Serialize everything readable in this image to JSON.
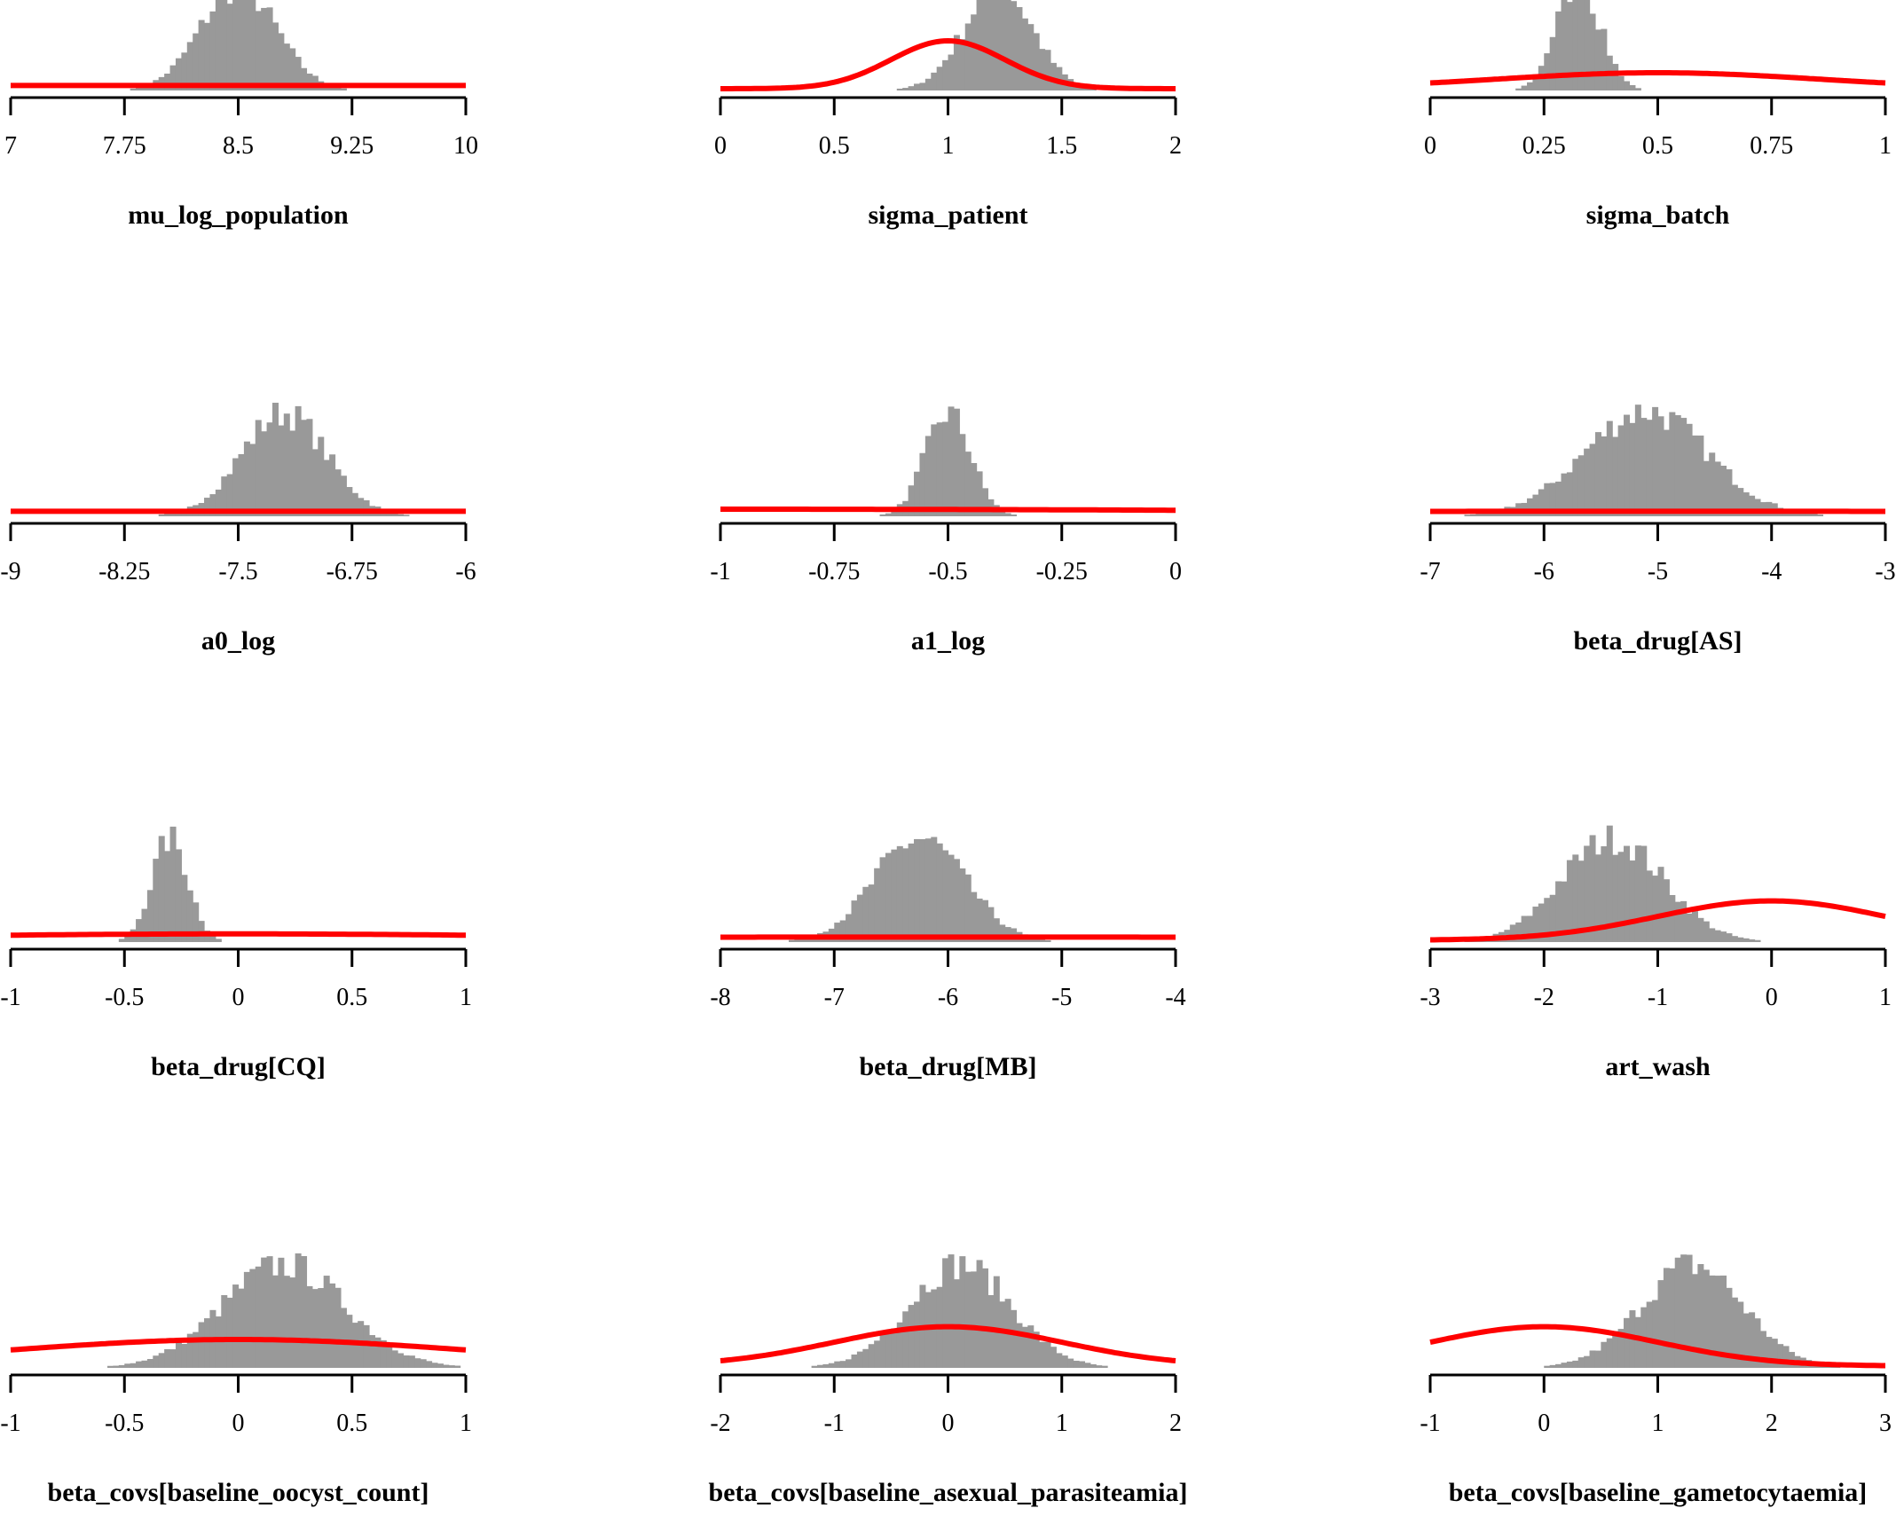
{
  "colors": {
    "histogram": "#999999",
    "prior_curve": "#ff0000",
    "axis": "#000000"
  },
  "chart_data": [
    {
      "type": "bar",
      "title": "mu_log_population",
      "xlim": [
        7,
        10
      ],
      "xticks": [
        7,
        7.75,
        8.5,
        9.25,
        10
      ],
      "tick_labels": [
        "7",
        "7.75",
        "8.5",
        "9.25",
        "10"
      ],
      "hist_center": 8.5,
      "hist_sd": 0.25,
      "hist_skew": 0,
      "prior": {
        "dist": "normal",
        "mean": 8.5,
        "sd": 10,
        "scale": 0.03
      }
    },
    {
      "type": "bar",
      "title": "sigma_patient",
      "xlim": [
        0,
        2
      ],
      "xticks": [
        0,
        0.5,
        1,
        1.5,
        2
      ],
      "tick_labels": [
        "0",
        "0.5",
        "1",
        "1.5",
        "2"
      ],
      "hist_center": 1.22,
      "hist_sd": 0.15,
      "hist_skew": 0,
      "prior": {
        "dist": "normal",
        "mean": 1,
        "sd": 0.25,
        "scale": 0.45
      }
    },
    {
      "type": "bar",
      "title": "sigma_batch",
      "xlim": [
        0,
        1
      ],
      "xticks": [
        0,
        0.25,
        0.5,
        0.75,
        1
      ],
      "tick_labels": [
        "0",
        "0.25",
        "0.5",
        "0.75",
        "1"
      ],
      "hist_center": 0.31,
      "hist_sd": 0.05,
      "hist_skew": 0.3,
      "prior": {
        "dist": "normal",
        "mean": 0.5,
        "sd": 0.35,
        "scale": 0.15
      }
    },
    {
      "type": "bar",
      "title": "a0_log",
      "xlim": [
        -9,
        -6
      ],
      "xticks": [
        -9,
        -8.25,
        -7.5,
        -6.75,
        -6
      ],
      "tick_labels": [
        "-9",
        "-8.25",
        "-7.5",
        "-6.75",
        "-6"
      ],
      "hist_center": -7.2,
      "hist_sd": 0.28,
      "hist_skew": 0,
      "prior": {
        "dist": "normal",
        "mean": -7.5,
        "sd": 10,
        "scale": 0.03
      }
    },
    {
      "type": "bar",
      "title": "a1_log",
      "xlim": [
        -1,
        0
      ],
      "xticks": [
        -1,
        -0.75,
        -0.5,
        -0.25,
        0
      ],
      "tick_labels": [
        "-1",
        "-0.75",
        "-0.5",
        "-0.25",
        "0"
      ],
      "hist_center": -0.5,
      "hist_sd": 0.05,
      "hist_skew": 0,
      "prior": {
        "dist": "normal",
        "mean": -1,
        "sd": 1.5,
        "scale": 0.05
      }
    },
    {
      "type": "bar",
      "title": "beta_drug[AS]",
      "xlim": [
        -7,
        -3
      ],
      "xticks": [
        -7,
        -6,
        -5,
        -4,
        -3
      ],
      "tick_labels": [
        "-7",
        "-6",
        "-5",
        "-4",
        "-3"
      ],
      "hist_center": -5,
      "hist_sd": 0.55,
      "hist_skew": -0.2,
      "prior": {
        "dist": "normal",
        "mean": -5,
        "sd": 10,
        "scale": 0.03
      }
    },
    {
      "type": "bar",
      "title": "beta_drug[CQ]",
      "xlim": [
        -1,
        1
      ],
      "xticks": [
        -1,
        -0.5,
        0,
        0.5,
        1
      ],
      "tick_labels": [
        "-1",
        "-0.5",
        "0",
        "0.5",
        "1"
      ],
      "hist_center": -0.3,
      "hist_sd": 0.08,
      "hist_skew": 0,
      "prior": {
        "dist": "normal",
        "mean": 0,
        "sd": 1.5,
        "scale": 0.06
      }
    },
    {
      "type": "bar",
      "title": "beta_drug[MB]",
      "xlim": [
        -8,
        -4
      ],
      "xticks": [
        -8,
        -7,
        -6,
        -5,
        -4
      ],
      "tick_labels": [
        "-8",
        "-7",
        "-6",
        "-5",
        "-4"
      ],
      "hist_center": -6.25,
      "hist_sd": 0.4,
      "hist_skew": 0,
      "prior": {
        "dist": "normal",
        "mean": -6,
        "sd": 10,
        "scale": 0.03
      }
    },
    {
      "type": "bar",
      "title": "art_wash",
      "xlim": [
        -3,
        1
      ],
      "xticks": [
        -3,
        -2,
        -1,
        0,
        1
      ],
      "tick_labels": [
        "-3",
        "-2",
        "-1",
        "0",
        "1"
      ],
      "hist_center": -1.4,
      "hist_sd": 0.45,
      "hist_skew": 0,
      "prior": {
        "dist": "normal",
        "mean": 0,
        "sd": 1,
        "scale": 0.37
      }
    },
    {
      "type": "bar",
      "title": "beta_covs[baseline_oocyst_count]",
      "xlim": [
        -1,
        1
      ],
      "xticks": [
        -1,
        -0.5,
        0,
        0.5,
        1
      ],
      "tick_labels": [
        "-1",
        "-0.5",
        "0",
        "0.5",
        "1"
      ],
      "hist_center": 0.2,
      "hist_sd": 0.27,
      "hist_skew": 0,
      "prior": {
        "dist": "normal",
        "mean": 0,
        "sd": 1,
        "scale": 0.25
      }
    },
    {
      "type": "bar",
      "title": "beta_covs[baseline_asexual_parasiteamia]",
      "xlim": [
        -2,
        2
      ],
      "xticks": [
        -2,
        -1,
        0,
        1,
        2
      ],
      "tick_labels": [
        "-2",
        "-1",
        "0",
        "1",
        "2"
      ],
      "hist_center": 0.1,
      "hist_sd": 0.45,
      "hist_skew": 0,
      "prior": {
        "dist": "normal",
        "mean": 0,
        "sd": 1,
        "scale": 0.37
      }
    },
    {
      "type": "bar",
      "title": "beta_covs[baseline_gametocytaemia]",
      "xlim": [
        -1,
        3
      ],
      "xticks": [
        -1,
        0,
        1,
        2,
        3
      ],
      "tick_labels": [
        "-1",
        "0",
        "1",
        "2",
        "3"
      ],
      "hist_center": 1.3,
      "hist_sd": 0.45,
      "hist_skew": 0,
      "prior": {
        "dist": "normal",
        "mean": 0,
        "sd": 1,
        "scale": 0.37
      }
    }
  ]
}
